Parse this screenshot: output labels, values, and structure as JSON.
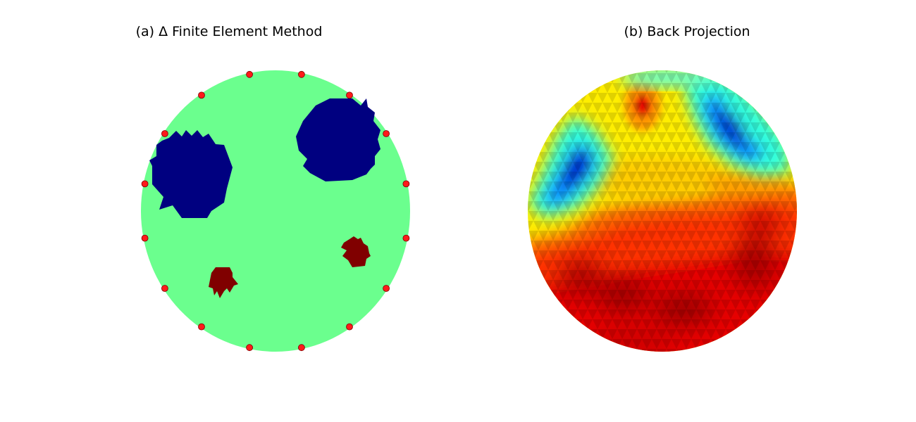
{
  "panels": [
    {
      "title": "(a) Δ Finite Element Method",
      "background_color": "#6bff8e",
      "inclusions": [
        {
          "kind": "low-conductivity",
          "color": "#000080"
        },
        {
          "kind": "low-conductivity",
          "color": "#000080"
        },
        {
          "kind": "high-conductivity",
          "color": "#800000"
        },
        {
          "kind": "high-conductivity",
          "color": "#800000"
        }
      ],
      "electrodes": {
        "count": 16,
        "color": "#ff1a1a",
        "edge_color": "#7a0000"
      }
    },
    {
      "title": "(b) Back Projection",
      "colormap": "jet"
    }
  ]
}
